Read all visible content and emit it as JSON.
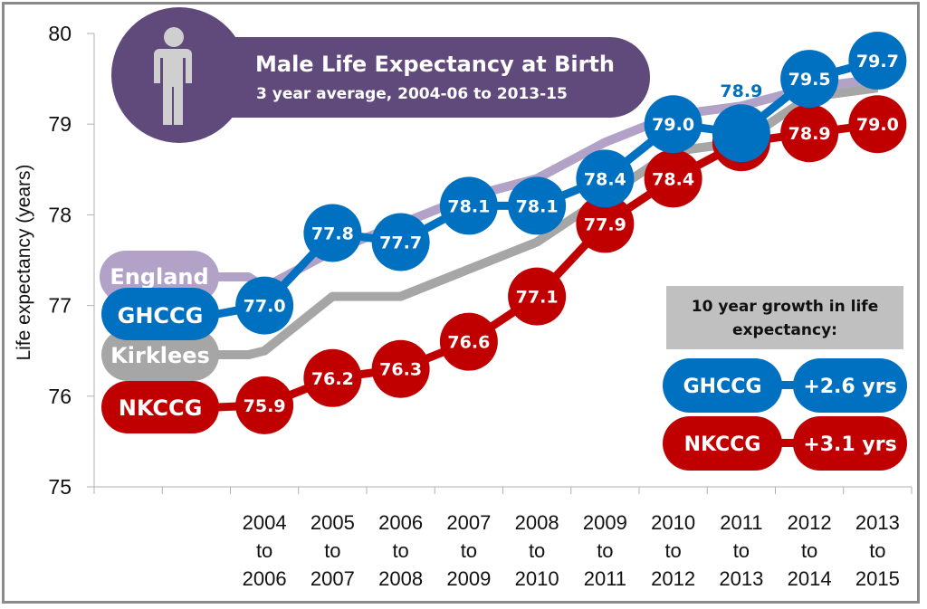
{
  "colors": {
    "england": "#b3a2c8",
    "ghccg": "#0070c0",
    "kirklees": "#a6a6a6",
    "nkccg": "#c00000",
    "title_bg": "#604a7b",
    "figure_icon": "#cfcfcf",
    "growth_header_bg": "#c0c0c0"
  },
  "title": {
    "main": "Male Life Expectancy at Birth",
    "sub": "3 year average, 2004-06 to 2013-15",
    "icon": "male-person-icon"
  },
  "legend": {
    "england": "England",
    "ghccg": "GHCCG",
    "kirklees": "Kirklees",
    "nkccg": "NKCCG"
  },
  "growth_box": {
    "header_line1": "10 year growth in life",
    "header_line2": "expectancy:",
    "rows": [
      {
        "name": "GHCCG",
        "value": "+2.6 yrs"
      },
      {
        "name": "NKCCG",
        "value": "+3.1 yrs"
      }
    ]
  },
  "chart_data": {
    "type": "line",
    "title": "Male Life Expectancy at Birth",
    "subtitle": "3 year average, 2004-06 to 2013-15",
    "xlabel": "",
    "ylabel": "Life expectancy (years)",
    "ylim": [
      75,
      80
    ],
    "yticks": [
      75,
      76,
      77,
      78,
      79,
      80
    ],
    "grid": false,
    "legend_position": "left (inline labels)",
    "categories": [
      [
        "2004",
        "to",
        "2006"
      ],
      [
        "2005",
        "to",
        "2007"
      ],
      [
        "2006",
        "to",
        "2008"
      ],
      [
        "2007",
        "to",
        "2009"
      ],
      [
        "2008",
        "to",
        "2010"
      ],
      [
        "2009",
        "to",
        "2011"
      ],
      [
        "2010",
        "to",
        "2012"
      ],
      [
        "2011",
        "to",
        "2013"
      ],
      [
        "2012",
        "to",
        "2014"
      ],
      [
        "2013",
        "to",
        "2015"
      ]
    ],
    "series": [
      {
        "name": "England",
        "key": "england",
        "labeled": false,
        "values": [
          77.2,
          77.6,
          77.9,
          78.2,
          78.4,
          78.8,
          79.1,
          79.2,
          79.4,
          79.5
        ]
      },
      {
        "name": "Kirklees",
        "key": "kirklees",
        "labeled": false,
        "values": [
          76.5,
          77.1,
          77.1,
          77.4,
          77.7,
          78.2,
          78.7,
          78.8,
          79.3,
          79.4
        ]
      },
      {
        "name": "NKCCG",
        "key": "nkccg",
        "labeled": true,
        "values": [
          75.9,
          76.2,
          76.3,
          76.6,
          77.1,
          77.9,
          78.4,
          78.8,
          78.9,
          79.0
        ],
        "labels": [
          "75.9",
          "76.2",
          "76.3",
          "76.6",
          "77.1",
          "77.9",
          "78.4",
          "78.8",
          "78.9",
          "79.0"
        ]
      },
      {
        "name": "GHCCG",
        "key": "ghccg",
        "labeled": true,
        "values": [
          77.0,
          77.8,
          77.7,
          78.1,
          78.1,
          78.4,
          79.0,
          78.9,
          79.5,
          79.7
        ],
        "labels": [
          "77.0",
          "77.8",
          "77.7",
          "78.1",
          "78.1",
          "78.4",
          "79.0",
          "78.9",
          "79.5",
          "79.7"
        ]
      }
    ]
  }
}
